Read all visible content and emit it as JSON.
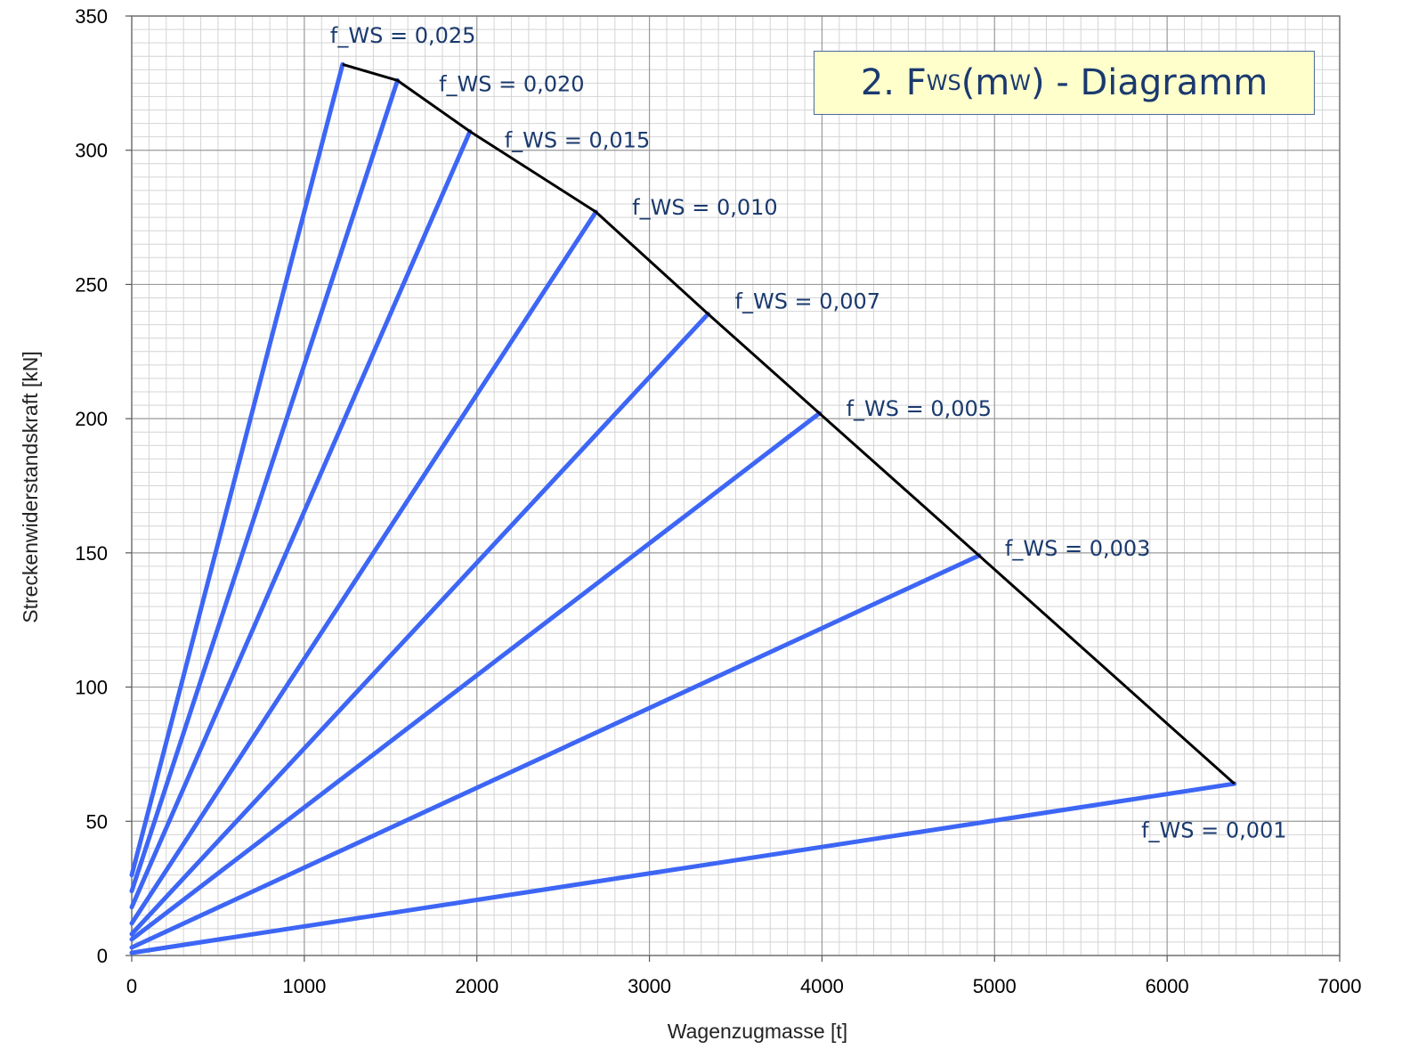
{
  "chart_data": {
    "type": "line",
    "title": {
      "prefix": "2. F",
      "sub1": "WS",
      "middle": " (m",
      "sub2": "W",
      "suffix": ") - Diagramm"
    },
    "xlabel": "Wagenzugmasse [t]",
    "ylabel": "Streckenwiderstandskraft [kN]",
    "xlim": [
      0,
      7000
    ],
    "ylim": [
      0,
      350
    ],
    "xticks": [
      0,
      1000,
      2000,
      3000,
      4000,
      5000,
      6000,
      7000
    ],
    "yticks": [
      0,
      50,
      100,
      150,
      200,
      250,
      300,
      350
    ],
    "grid": true,
    "series": [
      {
        "name": "f_WS = 0,025",
        "color": "#3d66f5",
        "x": [
          0,
          1222
        ],
        "y": [
          30,
          332
        ]
      },
      {
        "name": "f_WS = 0,020",
        "color": "#3d66f5",
        "x": [
          0,
          1540
        ],
        "y": [
          24,
          326
        ]
      },
      {
        "name": "f_WS = 0,015",
        "color": "#3d66f5",
        "x": [
          0,
          1960
        ],
        "y": [
          18,
          307
        ]
      },
      {
        "name": "f_WS = 0,010",
        "color": "#3d66f5",
        "x": [
          0,
          2690
        ],
        "y": [
          12,
          277
        ]
      },
      {
        "name": "f_WS = 0,007",
        "color": "#3d66f5",
        "x": [
          0,
          3340
        ],
        "y": [
          8,
          239
        ]
      },
      {
        "name": "f_WS = 0,005",
        "color": "#3d66f5",
        "x": [
          0,
          3985
        ],
        "y": [
          6,
          202
        ]
      },
      {
        "name": "f_WS = 0,003",
        "color": "#3d66f5",
        "x": [
          0,
          4910
        ],
        "y": [
          3,
          149
        ]
      },
      {
        "name": "f_WS = 0,001",
        "color": "#3d66f5",
        "x": [
          0,
          6390
        ],
        "y": [
          1,
          64
        ]
      }
    ],
    "envelope": {
      "color": "#000000",
      "x": [
        1222,
        1540,
        1960,
        2690,
        3340,
        3985,
        4910,
        6390
      ],
      "y": [
        332,
        326,
        307,
        277,
        239,
        202,
        149,
        64
      ]
    },
    "annotations": [
      {
        "text": "f_WS = 0,025",
        "x": 1150,
        "y": 340
      },
      {
        "text": "f_WS = 0,020",
        "x": 1780,
        "y": 322
      },
      {
        "text": "f_WS = 0,015",
        "x": 2160,
        "y": 301
      },
      {
        "text": "f_WS = 0,010",
        "x": 2900,
        "y": 276
      },
      {
        "text": "f_WS = 0,007",
        "x": 3495,
        "y": 241
      },
      {
        "text": "f_WS = 0,005",
        "x": 4140,
        "y": 201
      },
      {
        "text": "f_WS = 0,003",
        "x": 5060,
        "y": 149
      },
      {
        "text": "f_WS = 0,001",
        "x": 5850,
        "y": 44
      }
    ]
  }
}
